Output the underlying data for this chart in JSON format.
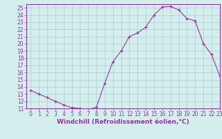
{
  "x": [
    0,
    1,
    2,
    3,
    4,
    5,
    6,
    7,
    8,
    9,
    10,
    11,
    12,
    13,
    14,
    15,
    16,
    17,
    18,
    19,
    20,
    21,
    22,
    23
  ],
  "y": [
    13.5,
    13.0,
    12.5,
    12.0,
    11.5,
    11.1,
    11.0,
    10.8,
    11.2,
    14.5,
    17.5,
    19.0,
    21.0,
    21.5,
    22.3,
    24.0,
    25.1,
    25.2,
    24.7,
    23.5,
    23.2,
    20.0,
    18.5,
    15.5
  ],
  "xlabel": "Windchill (Refroidissement éolien,°C)",
  "ylim": [
    11,
    25.5
  ],
  "xlim": [
    -0.5,
    23
  ],
  "yticks": [
    11,
    12,
    13,
    14,
    15,
    16,
    17,
    18,
    19,
    20,
    21,
    22,
    23,
    24,
    25
  ],
  "xticks": [
    0,
    1,
    2,
    3,
    4,
    5,
    6,
    7,
    8,
    9,
    10,
    11,
    12,
    13,
    14,
    15,
    16,
    17,
    18,
    19,
    20,
    21,
    22,
    23
  ],
  "line_color": "#993399",
  "marker_color": "#993399",
  "bg_color": "#d4eeee",
  "grid_color": "#aacccc",
  "label_color": "#993399",
  "tick_color": "#993399",
  "border_color": "#993399",
  "font_size": 5.5,
  "xlabel_font_size": 6.5
}
